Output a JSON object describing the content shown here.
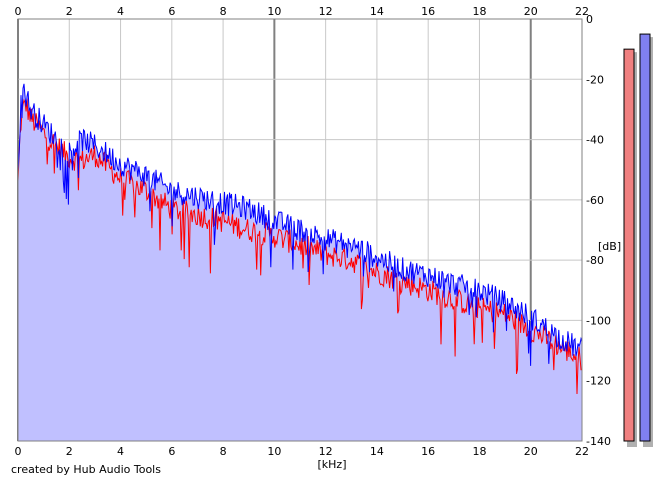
{
  "footer": {
    "credit": "created by Hub Audio Tools"
  },
  "colors": {
    "background": "#ffffff",
    "plot_background": "#ffffff",
    "grid_minor": "#c8c8c8",
    "grid_major": "#808080",
    "fill": "#c0c0ff",
    "channel_1": "#ff0000",
    "channel_2": "#0000ff",
    "meter_1": "#f08080",
    "meter_2": "#8080f0",
    "meter_shadow": "#b0b0b0"
  },
  "level_meters": [
    {
      "name": "",
      "level_db": -10,
      "color": "#f08080"
    },
    {
      "name": "",
      "level_db": -5,
      "color": "#8080f0"
    }
  ],
  "chart_data": {
    "type": "line",
    "title": "",
    "xlabel": "[kHz]",
    "ylabel": "[dB]",
    "xlim": [
      0,
      22
    ],
    "ylim": [
      -140,
      0
    ],
    "x_ticks": [
      0,
      2,
      4,
      6,
      8,
      10,
      12,
      14,
      16,
      18,
      20,
      22
    ],
    "y_ticks": [
      0,
      -20,
      -40,
      -60,
      -80,
      -100,
      -120,
      -140
    ],
    "x_tick_labels_top": [
      "0",
      "2",
      "4",
      "6",
      "8",
      "10",
      "12",
      "14",
      "16",
      "18",
      "20",
      "22"
    ],
    "x_tick_labels_bottom": [
      "0",
      "2",
      "4",
      "6",
      "8",
      "10",
      "12",
      "14",
      "16",
      "18",
      "20",
      "22"
    ],
    "y_tick_labels": [
      "0",
      "-20",
      "-40",
      "-60",
      "-80",
      "-100",
      "-120",
      "-140"
    ],
    "grid": true,
    "series": [
      {
        "name": "",
        "color": "#ff0000",
        "x": [
          0,
          0.1,
          0.2,
          0.3,
          0.5,
          1,
          1.5,
          2,
          2.5,
          3,
          4,
          5,
          6,
          7,
          8,
          9,
          10,
          11,
          12,
          13,
          14,
          15,
          16,
          17,
          18,
          19,
          20,
          21,
          22
        ],
        "values": [
          -55,
          -35,
          -30,
          -28,
          -33,
          -38,
          -42,
          -46,
          -47,
          -45,
          -53,
          -57,
          -63,
          -65,
          -67,
          -70,
          -72,
          -75,
          -78,
          -80,
          -84,
          -87,
          -90,
          -93,
          -96,
          -98,
          -103,
          -108,
          -113
        ]
      },
      {
        "name": "",
        "color": "#0000ff",
        "x": [
          0,
          0.1,
          0.2,
          0.3,
          0.5,
          1,
          1.5,
          2,
          2.5,
          3,
          4,
          5,
          6,
          7,
          8,
          9,
          10,
          11,
          12,
          13,
          14,
          15,
          16,
          17,
          18,
          19,
          20,
          21,
          22
        ],
        "values": [
          -50,
          -30,
          -22,
          -25,
          -30,
          -35,
          -40,
          -44,
          -40,
          -42,
          -48,
          -52,
          -57,
          -59,
          -61,
          -63,
          -67,
          -70,
          -73,
          -75,
          -79,
          -83,
          -85,
          -88,
          -90,
          -94,
          -99,
          -105,
          -110
        ]
      }
    ]
  }
}
